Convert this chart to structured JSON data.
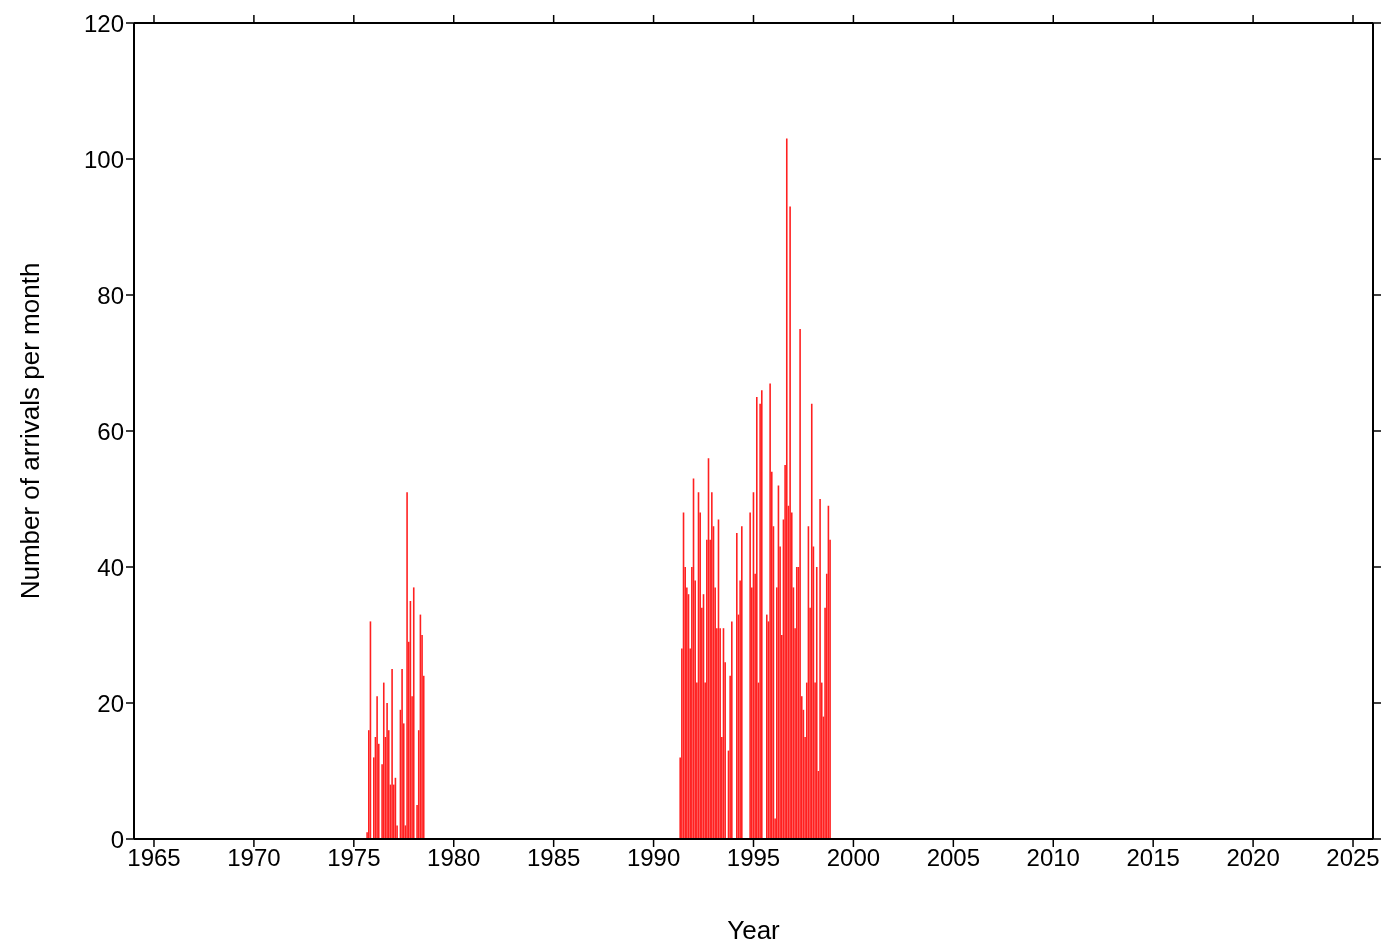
{
  "chart_data": {
    "type": "bar",
    "xlabel": "Year",
    "ylabel": "Number of arrivals per month",
    "x": [
      "1975-09",
      "1975-10",
      "1975-11",
      "1975-12",
      "1976-01",
      "1976-02",
      "1976-03",
      "1976-04",
      "1976-05",
      "1976-06",
      "1976-07",
      "1976-08",
      "1976-09",
      "1976-10",
      "1976-11",
      "1976-12",
      "1977-01",
      "1977-02",
      "1977-03",
      "1977-04",
      "1977-05",
      "1977-06",
      "1977-07",
      "1977-08",
      "1977-09",
      "1977-10",
      "1977-11",
      "1977-12",
      "1978-01",
      "1978-02",
      "1978-03",
      "1978-04",
      "1978-05",
      "1978-06",
      "1978-07",
      "1991-05",
      "1991-06",
      "1991-07",
      "1991-08",
      "1991-09",
      "1991-10",
      "1991-11",
      "1991-12",
      "1992-01",
      "1992-02",
      "1992-03",
      "1992-04",
      "1992-05",
      "1992-06",
      "1992-07",
      "1992-08",
      "1992-09",
      "1992-10",
      "1992-11",
      "1992-12",
      "1993-01",
      "1993-02",
      "1993-03",
      "1993-04",
      "1993-05",
      "1993-06",
      "1993-07",
      "1993-08",
      "1993-09",
      "1993-10",
      "1993-11",
      "1993-12",
      "1994-01",
      "1994-02",
      "1994-03",
      "1994-04",
      "1994-05",
      "1994-06",
      "1994-07",
      "1994-08",
      "1994-09",
      "1994-10",
      "1994-11",
      "1994-12",
      "1995-01",
      "1995-02",
      "1995-03",
      "1995-04",
      "1995-05",
      "1995-06",
      "1995-07",
      "1995-08",
      "1995-09",
      "1995-10",
      "1995-11",
      "1995-12",
      "1996-01",
      "1996-02",
      "1996-03",
      "1996-04",
      "1996-05",
      "1996-06",
      "1996-07",
      "1996-08",
      "1996-09",
      "1996-10",
      "1996-11",
      "1996-12",
      "1997-01",
      "1997-02",
      "1997-03",
      "1997-04",
      "1997-05",
      "1997-06",
      "1997-07",
      "1997-08",
      "1997-09",
      "1997-10",
      "1997-11",
      "1997-12",
      "1998-01",
      "1998-02",
      "1998-03",
      "1998-04",
      "1998-05",
      "1998-06",
      "1998-07",
      "1998-08",
      "1998-09",
      "1998-10",
      "1998-11"
    ],
    "values": [
      1,
      16,
      32,
      0,
      12,
      15,
      21,
      14,
      0,
      11,
      23,
      15,
      20,
      16,
      8,
      25,
      8,
      9,
      2,
      0,
      19,
      25,
      17,
      2,
      51,
      29,
      35,
      21,
      37,
      0,
      5,
      16,
      33,
      30,
      24,
      12,
      28,
      48,
      40,
      37,
      36,
      28,
      40,
      53,
      38,
      23,
      51,
      48,
      34,
      36,
      23,
      44,
      56,
      44,
      51,
      46,
      37,
      31,
      47,
      31,
      15,
      31,
      26,
      0,
      13,
      24,
      32,
      0,
      0,
      45,
      33,
      38,
      46,
      0,
      0,
      0,
      0,
      48,
      37,
      51,
      39,
      65,
      23,
      64,
      66,
      0,
      0,
      33,
      32,
      67,
      54,
      46,
      3,
      37,
      52,
      43,
      30,
      47,
      55,
      103,
      49,
      93,
      48,
      37,
      31,
      40,
      40,
      75,
      21,
      19,
      15,
      23,
      46,
      34,
      64,
      43,
      23,
      40,
      10,
      50,
      23,
      18,
      34,
      39,
      49,
      44
    ],
    "color": "#ff2020",
    "xlim": [
      "1964",
      "2026"
    ],
    "xticks": [
      "1965",
      "1970",
      "1975",
      "1980",
      "1985",
      "1990",
      "1995",
      "2000",
      "2005",
      "2010",
      "2015",
      "2020",
      "2025"
    ],
    "ylim": [
      0,
      120
    ],
    "yticks": [
      0,
      20,
      40,
      60,
      80,
      100,
      120
    ]
  }
}
